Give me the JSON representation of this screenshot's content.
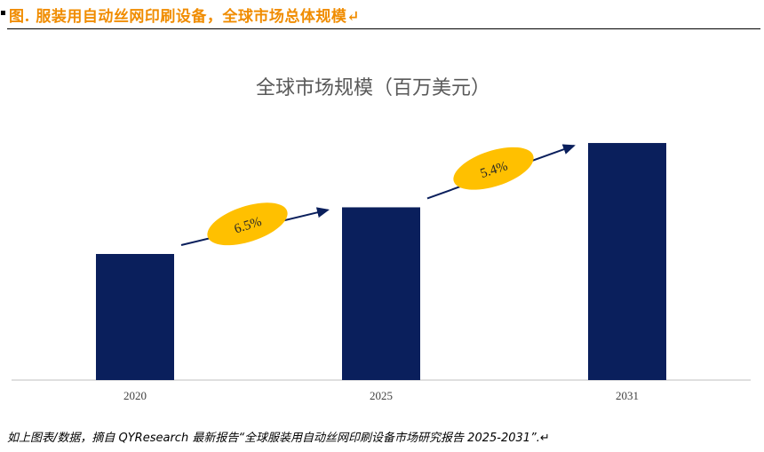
{
  "header": {
    "title": "图.   服装用自动丝网印刷设备，全球市场总体规模↵"
  },
  "chart_data": {
    "type": "bar",
    "title": "全球市场规模（百万美元）",
    "categories": [
      "2020",
      "2025",
      "2031"
    ],
    "values": [
      100,
      137,
      188
    ],
    "bar_color": "#0a1f5c",
    "annotations": [
      {
        "label": "6.5%",
        "from": "2020",
        "to": "2025",
        "color": "#ffc000"
      },
      {
        "label": "5.4%",
        "from": "2025",
        "to": "2031",
        "color": "#ffc000"
      }
    ],
    "grid": false
  },
  "footer": {
    "note": "如上图表/数据，摘自 QYResearch 最新报告“全球服装用自动丝网印刷设备市场研究报告 2025-2031”.↵"
  }
}
